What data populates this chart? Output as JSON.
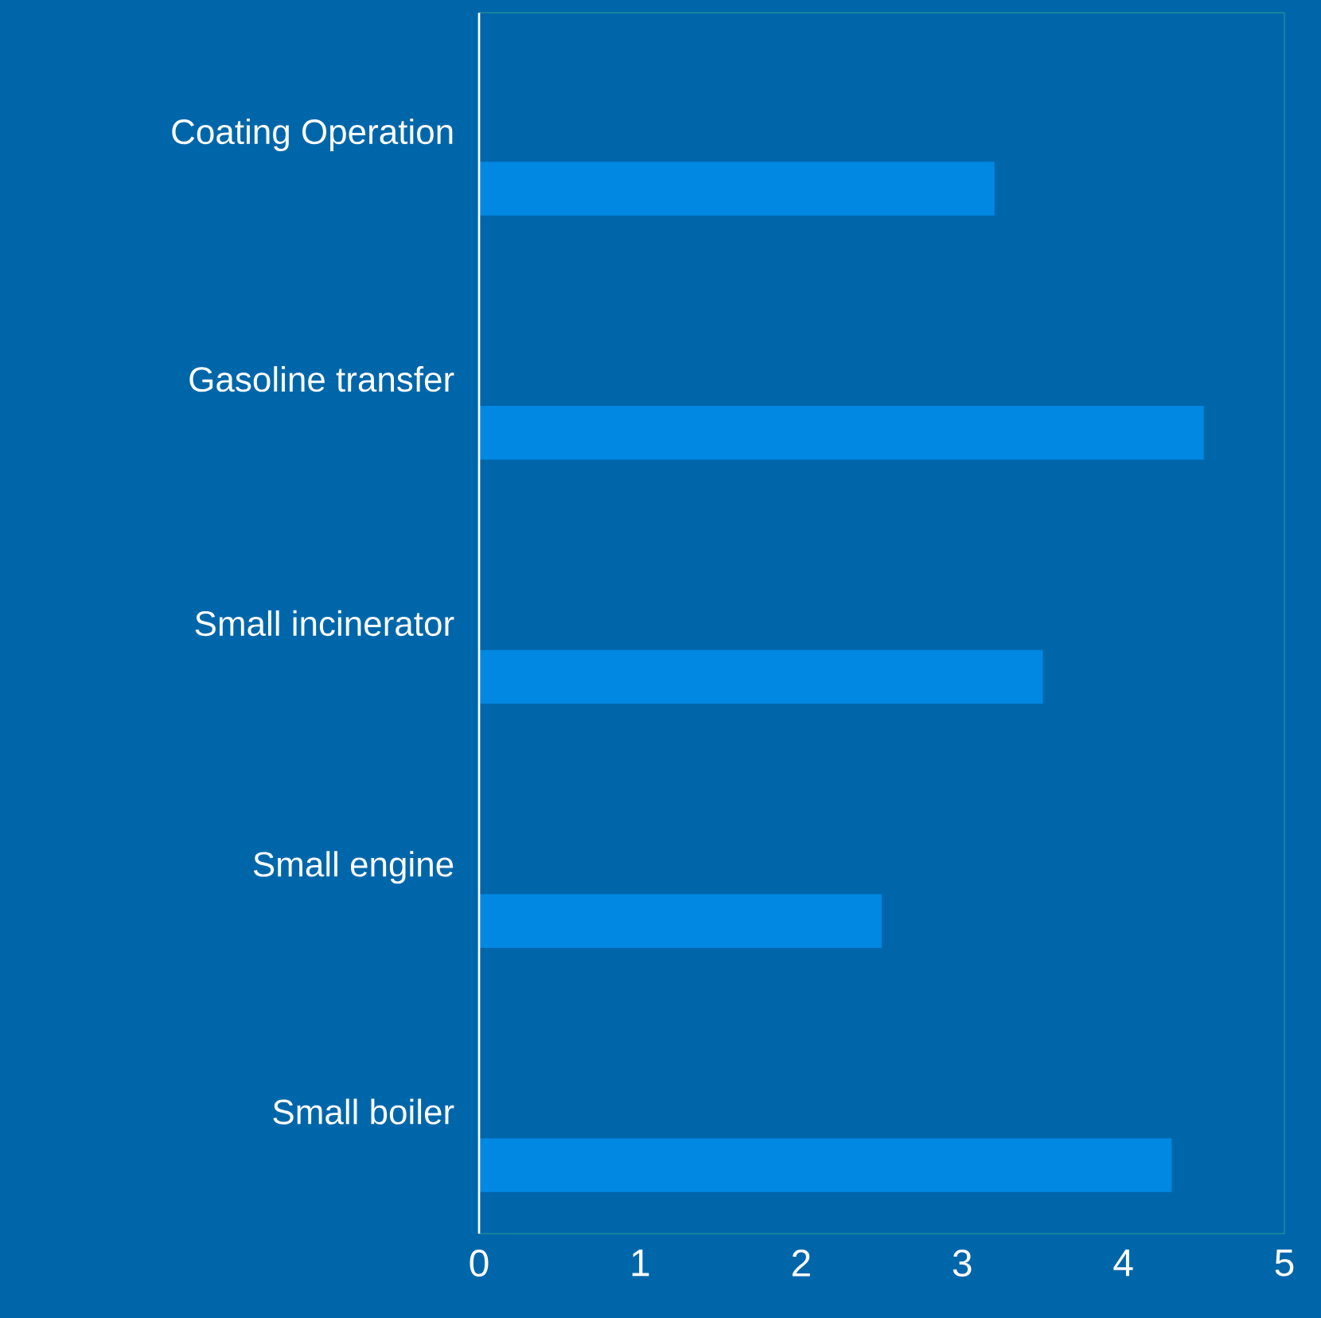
{
  "chart_data": {
    "type": "bar",
    "orientation": "horizontal",
    "categories": [
      "Coating Operation",
      "Gasoline transfer",
      "Small incinerator",
      "Small engine",
      "Small boiler"
    ],
    "values": [
      3.2,
      4.5,
      3.5,
      2.5,
      4.3
    ],
    "color": "#0088e3",
    "xlim": [
      0,
      5
    ],
    "xticks": [
      0,
      1,
      2,
      3,
      4,
      5
    ]
  }
}
